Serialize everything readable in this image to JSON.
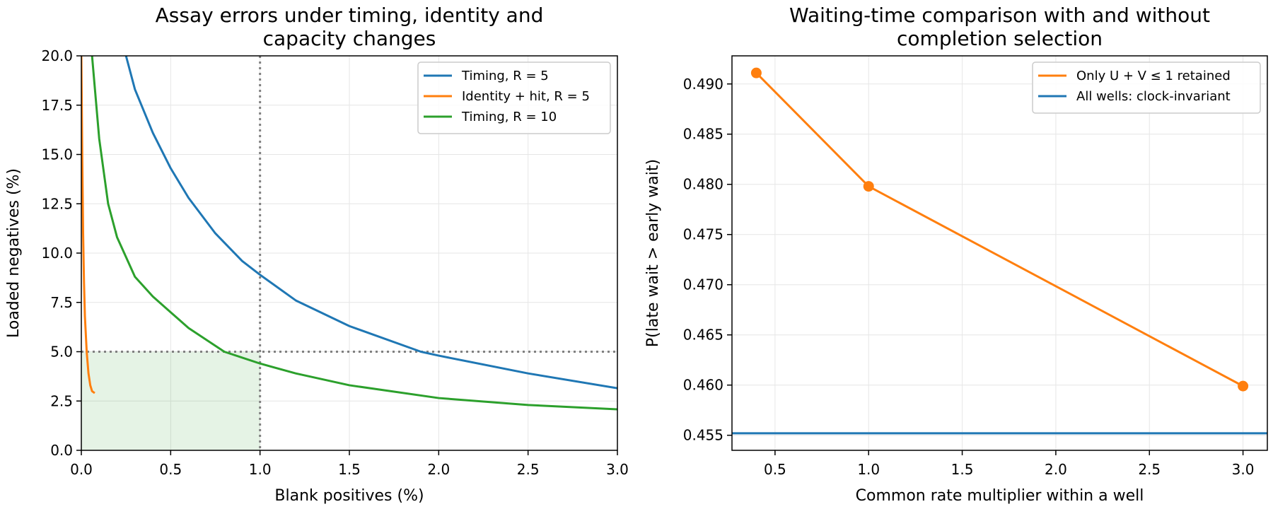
{
  "chart_data": [
    {
      "type": "line",
      "title_lines": [
        "Assay errors under timing, identity and",
        "capacity changes"
      ],
      "xlabel": "Blank positives (%)",
      "ylabel": "Loaded negatives (%)",
      "xlim": [
        0,
        3
      ],
      "ylim": [
        0,
        20
      ],
      "xticks": [
        0,
        0.5,
        1,
        1.5,
        2,
        2.5,
        3
      ],
      "xtick_labels": [
        "0.0",
        "0.5",
        "1.0",
        "1.5",
        "2.0",
        "2.5",
        "3.0"
      ],
      "yticks": [
        0,
        2.5,
        5,
        7.5,
        10,
        12.5,
        15,
        17.5,
        20
      ],
      "ytick_labels": [
        "0.0",
        "2.5",
        "5.0",
        "7.5",
        "10.0",
        "12.5",
        "15.0",
        "17.5",
        "20.0"
      ],
      "grid": true,
      "legend_position": "upper right",
      "reference_lines": [
        {
          "orientation": "vertical",
          "x": 1.0,
          "style": "dotted",
          "color": "#808080"
        },
        {
          "orientation": "horizontal",
          "y": 5.0,
          "style": "dotted",
          "color": "#808080"
        }
      ],
      "shaded_region": {
        "x": [
          0,
          1.0
        ],
        "y": [
          0,
          5.0
        ],
        "color": "#2ca02c",
        "opacity": 0.12
      },
      "series": [
        {
          "name": "Timing, R = 5",
          "color": "#1f77b4",
          "x": [
            0.25,
            0.3,
            0.4,
            0.5,
            0.6,
            0.75,
            0.9,
            1.0,
            1.2,
            1.5,
            1.9,
            2.0,
            2.5,
            3.0
          ],
          "y": [
            20.0,
            18.3,
            16.1,
            14.3,
            12.8,
            11.0,
            9.6,
            8.9,
            7.6,
            6.3,
            5.0,
            4.8,
            3.9,
            3.15
          ]
        },
        {
          "name": "Identity + hit, R = 5",
          "color": "#ff7f0e",
          "x": [
            0.0,
            0.005,
            0.01,
            0.015,
            0.02,
            0.03,
            0.04,
            0.05,
            0.06,
            0.075
          ],
          "y": [
            20.0,
            15.0,
            11.0,
            8.5,
            6.8,
            5.0,
            3.9,
            3.3,
            3.0,
            2.9
          ]
        },
        {
          "name": "Timing, R = 10",
          "color": "#2ca02c",
          "x": [
            0.06,
            0.1,
            0.15,
            0.2,
            0.3,
            0.4,
            0.5,
            0.6,
            0.8,
            1.0,
            1.2,
            1.5,
            2.0,
            2.5,
            3.0
          ],
          "y": [
            20.0,
            15.8,
            12.5,
            10.8,
            8.8,
            7.8,
            7.0,
            6.2,
            5.0,
            4.4,
            3.9,
            3.3,
            2.65,
            2.3,
            2.08
          ]
        }
      ]
    },
    {
      "type": "line",
      "title_lines": [
        "Waiting-time comparison with and without",
        "completion selection"
      ],
      "xlabel": "Common rate multiplier within a well",
      "ylabel": "P(late wait > early wait)",
      "xlim": [
        0.27,
        3.13
      ],
      "ylim": [
        0.4535,
        0.4928
      ],
      "xticks": [
        0.5,
        1.0,
        1.5,
        2.0,
        2.5,
        3.0
      ],
      "xtick_labels": [
        "0.5",
        "1.0",
        "1.5",
        "2.0",
        "2.5",
        "3.0"
      ],
      "yticks": [
        0.455,
        0.46,
        0.465,
        0.47,
        0.475,
        0.48,
        0.485,
        0.49
      ],
      "ytick_labels": [
        "0.455",
        "0.460",
        "0.465",
        "0.470",
        "0.475",
        "0.480",
        "0.485",
        "0.490"
      ],
      "grid": true,
      "legend_position": "upper right",
      "series": [
        {
          "name": "Only U + V ≤ 1 retained",
          "color": "#ff7f0e",
          "markers": true,
          "x": [
            0.4,
            1.0,
            3.0
          ],
          "y": [
            0.4911,
            0.4798,
            0.4599
          ]
        },
        {
          "name": "All wells: clock-invariant",
          "color": "#1f77b4",
          "horizontal": true,
          "y": 0.4552
        }
      ]
    }
  ]
}
